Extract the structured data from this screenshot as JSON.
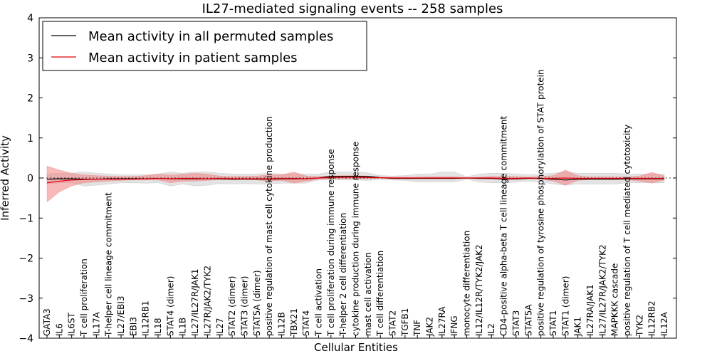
{
  "chart_data": {
    "type": "line",
    "title": "IL27-mediated signaling events -- 258 samples",
    "xlabel": "Cellular Entities",
    "ylabel": "Inferred Activity",
    "ylim": [
      -4,
      4
    ],
    "yticks": [
      -4,
      -3,
      -2,
      -1,
      0,
      1,
      2,
      3,
      4
    ],
    "grid": false,
    "legend_position": "top-left",
    "categories": [
      "GATA3",
      "IL6",
      "IL6ST",
      "T cell proliferation",
      "IL17A",
      "T-helper cell lineage commitment",
      "IL27/EBI3",
      "EBI3",
      "IL12RB1",
      "IL18",
      "STAT4 (dimer)",
      "IL1B",
      "IL27/IL27R/JAK1",
      "IL27R/JAK2/TYK2",
      "IL27",
      "STAT2 (dimer)",
      "STAT3 (dimer)",
      "STAT5A (dimer)",
      "positive regulation of mast cell cytokine production",
      "IL12B",
      "TBX21",
      "STAT4",
      "T cell activation",
      "T cell proliferation during immune response",
      "T-helper 2 cell differentiation",
      "cytokine production during immune response",
      "mast cell activation",
      "T cell differentiation",
      "STAT2",
      "TGFB1",
      "TNF",
      "JAK2",
      "IL27RA",
      "IFNG",
      "monocyte differentiation",
      "IL12/IL12R/TYK2/JAK2",
      "IL2",
      "CD4-positive alpha-beta T cell lineage commitment",
      "STAT3",
      "STAT5A",
      "positive regulation of tyrosine phosphorylation of STAT protein",
      "STAT1",
      "STAT1 (dimer)",
      "JAK1",
      "IL27RA/JAK1",
      "IL27/IL27R/JAK2/TYK2",
      "MAPKKK cascade",
      "positive regulation of T cell mediated cytotoxicity",
      "TYK2",
      "IL12RB2",
      "IL12A"
    ],
    "series": [
      {
        "name": "Mean activity in all permuted samples",
        "color": "#000000",
        "band_color": "#b0b0b0",
        "values": [
          -0.03,
          -0.02,
          -0.02,
          -0.03,
          -0.03,
          -0.02,
          -0.02,
          -0.02,
          -0.02,
          -0.01,
          -0.02,
          -0.02,
          -0.02,
          -0.02,
          -0.02,
          -0.03,
          -0.03,
          -0.03,
          -0.03,
          -0.02,
          -0.02,
          -0.02,
          0.0,
          0.04,
          0.04,
          0.04,
          0.04,
          0.01,
          -0.01,
          -0.01,
          -0.01,
          -0.01,
          -0.01,
          -0.01,
          0.0,
          -0.01,
          -0.01,
          -0.02,
          -0.02,
          -0.01,
          -0.01,
          -0.03,
          -0.05,
          -0.03,
          -0.03,
          -0.03,
          -0.03,
          -0.02,
          -0.02,
          -0.02,
          -0.02
        ],
        "lower": [
          -0.15,
          -0.12,
          -0.12,
          -0.2,
          -0.18,
          -0.15,
          -0.12,
          -0.12,
          -0.13,
          -0.12,
          -0.2,
          -0.15,
          -0.2,
          -0.18,
          -0.14,
          -0.15,
          -0.14,
          -0.15,
          -0.15,
          -0.13,
          -0.13,
          -0.13,
          -0.05,
          -0.05,
          -0.05,
          -0.05,
          -0.06,
          -0.04,
          -0.05,
          -0.06,
          -0.1,
          -0.1,
          -0.1,
          -0.1,
          -0.03,
          -0.1,
          -0.12,
          -0.12,
          -0.1,
          -0.08,
          -0.1,
          -0.15,
          -0.18,
          -0.15,
          -0.15,
          -0.15,
          -0.15,
          -0.12,
          -0.12,
          -0.12,
          -0.12
        ],
        "upper": [
          0.1,
          0.12,
          0.12,
          0.15,
          0.12,
          0.1,
          0.08,
          0.08,
          0.08,
          0.1,
          0.15,
          0.12,
          0.15,
          0.15,
          0.12,
          0.1,
          0.1,
          0.1,
          0.12,
          0.1,
          0.1,
          0.1,
          0.1,
          0.15,
          0.15,
          0.15,
          0.13,
          0.06,
          0.05,
          0.06,
          0.1,
          0.1,
          0.15,
          0.15,
          0.03,
          0.1,
          0.12,
          0.12,
          0.1,
          0.08,
          0.1,
          0.12,
          0.15,
          0.12,
          0.12,
          0.12,
          0.12,
          0.1,
          0.1,
          0.1,
          0.1
        ]
      },
      {
        "name": "Mean activity in patient samples",
        "color": "#e8000b",
        "band_color": "#f08080",
        "values": [
          -0.12,
          -0.08,
          -0.05,
          -0.04,
          -0.03,
          -0.03,
          -0.03,
          -0.03,
          -0.02,
          -0.01,
          -0.02,
          -0.01,
          -0.01,
          -0.02,
          -0.01,
          -0.02,
          -0.02,
          -0.02,
          -0.02,
          -0.01,
          -0.01,
          -0.02,
          0.0,
          0.01,
          0.02,
          0.02,
          0.01,
          0.01,
          0.0,
          0.0,
          0.0,
          0.0,
          0.0,
          0.0,
          0.0,
          0.0,
          0.0,
          -0.01,
          -0.01,
          0.0,
          -0.01,
          -0.01,
          0.0,
          -0.01,
          -0.01,
          -0.01,
          -0.01,
          -0.01,
          -0.01,
          -0.01,
          -0.01
        ],
        "lower": [
          -0.6,
          -0.35,
          -0.2,
          -0.12,
          -0.1,
          -0.08,
          -0.06,
          -0.05,
          -0.05,
          -0.05,
          -0.12,
          -0.08,
          -0.08,
          -0.06,
          -0.04,
          -0.05,
          -0.04,
          -0.05,
          -0.08,
          -0.06,
          -0.13,
          -0.08,
          -0.03,
          -0.02,
          -0.02,
          -0.02,
          -0.02,
          -0.01,
          -0.02,
          -0.02,
          -0.02,
          -0.02,
          -0.02,
          -0.02,
          -0.01,
          -0.02,
          -0.03,
          -0.04,
          -0.04,
          -0.02,
          -0.03,
          -0.08,
          -0.18,
          -0.06,
          -0.04,
          -0.04,
          -0.04,
          -0.04,
          -0.08,
          -0.13,
          -0.05
        ],
        "upper": [
          0.3,
          0.2,
          0.12,
          0.08,
          0.06,
          0.05,
          0.04,
          0.04,
          0.06,
          0.1,
          0.08,
          0.1,
          0.12,
          0.1,
          0.05,
          0.04,
          0.04,
          0.05,
          0.08,
          0.08,
          0.15,
          0.05,
          0.04,
          0.05,
          0.06,
          0.06,
          0.05,
          0.02,
          0.02,
          0.02,
          0.02,
          0.03,
          0.03,
          0.03,
          0.01,
          0.02,
          0.04,
          0.04,
          0.04,
          0.02,
          0.04,
          0.06,
          0.2,
          0.06,
          0.03,
          0.03,
          0.03,
          0.03,
          0.05,
          0.14,
          0.05
        ]
      }
    ]
  }
}
